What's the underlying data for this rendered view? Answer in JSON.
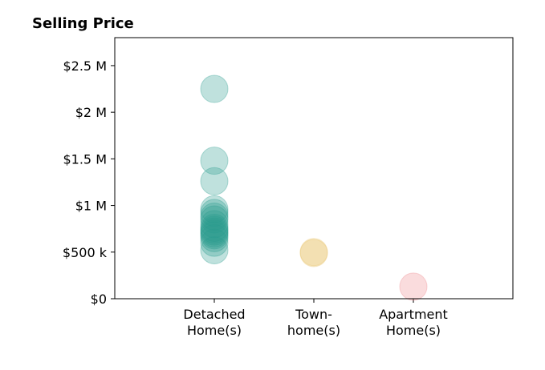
{
  "chart_data": {
    "type": "scatter",
    "title": "Selling Price",
    "xlabel": "",
    "ylabel": "",
    "categories": [
      [
        "Detached",
        "Home(s)"
      ],
      [
        "Town-",
        "home(s)"
      ],
      [
        "Apartment",
        "Home(s)"
      ]
    ],
    "y_ticks": [
      {
        "value": 0,
        "label": "$0"
      },
      {
        "value": 500000,
        "label": "$500 k"
      },
      {
        "value": 1000000,
        "label": "$1 M"
      },
      {
        "value": 1500000,
        "label": "$1.5 M"
      },
      {
        "value": 2000000,
        "label": "$2 M"
      },
      {
        "value": 2500000,
        "label": "$2.5 M"
      }
    ],
    "ylim": [
      0,
      2800000
    ],
    "grid": false,
    "colors": [
      "#2a9d8f",
      "#e9c46a",
      "#ef8a8f"
    ],
    "series": [
      {
        "category_index": 0,
        "values": [
          2250000,
          1480000,
          1260000,
          960000,
          920000,
          880000,
          850000,
          800000,
          760000,
          740000,
          720000,
          700000,
          680000,
          650000,
          600000,
          520000
        ]
      },
      {
        "category_index": 1,
        "values": [
          500000,
          490000
        ]
      },
      {
        "category_index": 2,
        "values": [
          130000
        ]
      }
    ]
  }
}
